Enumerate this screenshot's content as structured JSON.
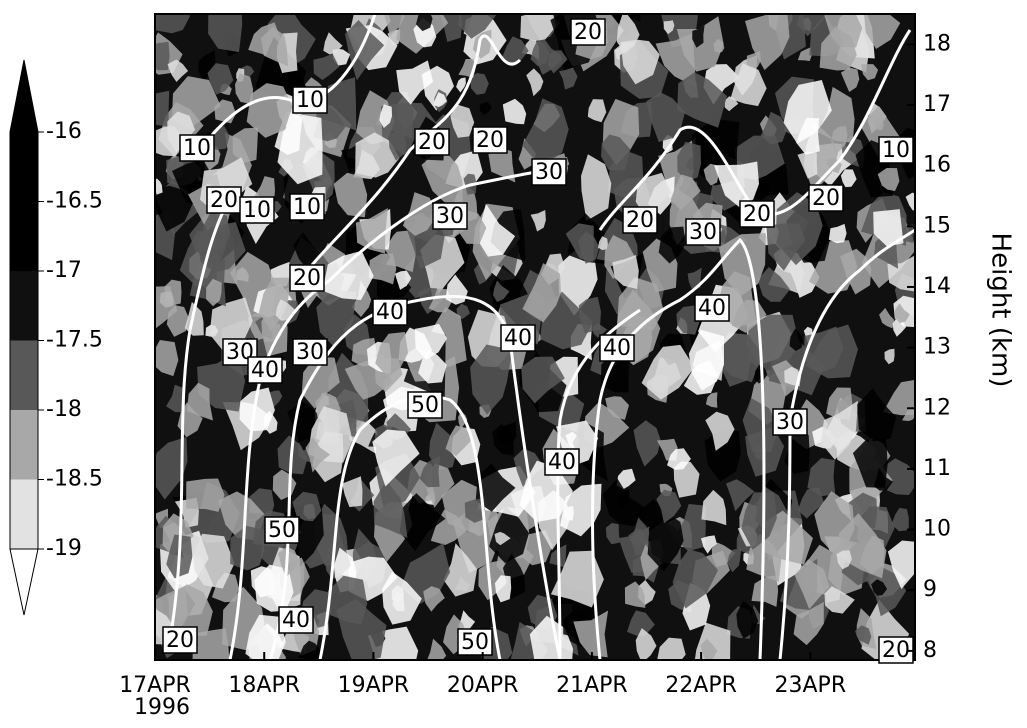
{
  "chart_data": {
    "type": "contour",
    "ylabel": "Height (km)",
    "xlim": [
      "1996-04-17T00:00",
      "1996-04-23T23:00"
    ],
    "xticks": [
      {
        "value": "1996-04-17",
        "label": "17APR"
      },
      {
        "value": "1996-04-18",
        "label": "18APR"
      },
      {
        "value": "1996-04-19",
        "label": "19APR"
      },
      {
        "value": "1996-04-20",
        "label": "20APR"
      },
      {
        "value": "1996-04-21",
        "label": "21APR"
      },
      {
        "value": "1996-04-22",
        "label": "22APR"
      },
      {
        "value": "1996-04-23",
        "label": "23APR"
      }
    ],
    "x_year": "1996",
    "ylim": [
      7.85,
      18.5
    ],
    "yticks": [
      8,
      9,
      10,
      11,
      12,
      13,
      14,
      15,
      16,
      17,
      18
    ],
    "colorbar": {
      "levels": [
        -16,
        -16.5,
        -17,
        -17.5,
        -18,
        -18.5,
        -19
      ],
      "colors": [
        "#000000",
        "#000000",
        "#000000",
        "#101010",
        "#585858",
        "#a8a8a8",
        "#e2e2e2",
        "#ffffff"
      ]
    },
    "contour_labels": [
      10,
      10,
      20,
      10,
      10,
      20,
      20,
      20,
      30,
      30,
      20,
      20,
      30,
      20,
      20,
      10,
      40,
      40,
      40,
      40,
      30,
      40,
      30,
      50,
      40,
      30,
      50,
      40,
      20,
      50,
      20
    ]
  }
}
